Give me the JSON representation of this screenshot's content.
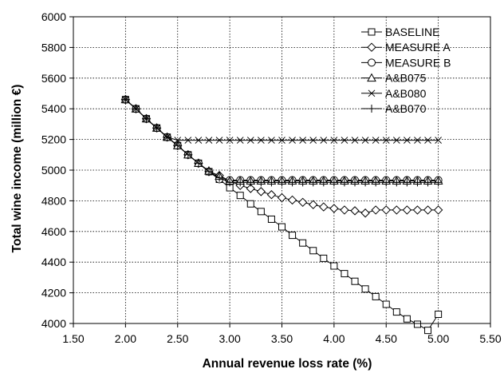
{
  "chart_data": {
    "type": "line",
    "title": "",
    "xlabel": "Annual revenue loss rate (%)",
    "ylabel": "Total wine income (million €)",
    "xlim": [
      1.5,
      5.5
    ],
    "ylim": [
      4000,
      6000
    ],
    "xticks": [
      "1.50",
      "2.00",
      "2.50",
      "3.00",
      "3.50",
      "4.00",
      "4.50",
      "5.00",
      "5.50"
    ],
    "yticks": [
      "4000",
      "4200",
      "4400",
      "4600",
      "4800",
      "5000",
      "5200",
      "5400",
      "5600",
      "5800",
      "6000"
    ],
    "grid": true,
    "legend_position": "top-right",
    "x": [
      2.0,
      2.1,
      2.2,
      2.3,
      2.4,
      2.5,
      2.6,
      2.7,
      2.8,
      2.9,
      3.0,
      3.1,
      3.2,
      3.3,
      3.4,
      3.5,
      3.6,
      3.7,
      3.8,
      3.9,
      4.0,
      4.1,
      4.2,
      4.3,
      4.4,
      4.5,
      4.6,
      4.7,
      4.8,
      4.9,
      5.0
    ],
    "series": [
      {
        "name": "BASELINE",
        "marker": "square",
        "values": [
          5460,
          5400,
          5335,
          5275,
          5215,
          5160,
          5100,
          5045,
          4990,
          4940,
          4885,
          4835,
          4780,
          4730,
          4680,
          4630,
          4575,
          4525,
          4475,
          4425,
          4375,
          4325,
          4275,
          4225,
          4175,
          4125,
          4075,
          4030,
          3995,
          3955,
          4060
        ]
      },
      {
        "name": "MEASURE A",
        "marker": "diamond",
        "values": [
          5460,
          5400,
          5335,
          5275,
          5215,
          5160,
          5100,
          5045,
          4990,
          4965,
          4930,
          4900,
          4880,
          4860,
          4840,
          4820,
          4805,
          4790,
          4775,
          4760,
          4750,
          4740,
          4735,
          4720,
          4740,
          4740,
          4740,
          4740,
          4740,
          4740,
          4740
        ]
      },
      {
        "name": "MEASURE B",
        "marker": "circle",
        "values": [
          5460,
          5400,
          5335,
          5275,
          5215,
          5160,
          5100,
          5045,
          4990,
          4940,
          4935,
          4935,
          4935,
          4935,
          4935,
          4935,
          4935,
          4935,
          4935,
          4935,
          4935,
          4935,
          4935,
          4935,
          4935,
          4935,
          4935,
          4935,
          4935,
          4935,
          4935
        ]
      },
      {
        "name": "A&B075",
        "marker": "triangle",
        "values": [
          5460,
          5400,
          5335,
          5275,
          5215,
          5160,
          5100,
          5045,
          4995,
          4960,
          4930,
          4930,
          4930,
          4930,
          4930,
          4930,
          4930,
          4930,
          4930,
          4930,
          4930,
          4930,
          4930,
          4930,
          4930,
          4930,
          4930,
          4930,
          4930,
          4930,
          4930
        ]
      },
      {
        "name": "A&B080",
        "marker": "x",
        "values": [
          5460,
          5400,
          5335,
          5275,
          5215,
          5195,
          5195,
          5195,
          5195,
          5195,
          5195,
          5195,
          5195,
          5195,
          5195,
          5195,
          5195,
          5195,
          5195,
          5195,
          5195,
          5195,
          5195,
          5195,
          5195,
          5195,
          5195,
          5195,
          5195,
          5195,
          5195
        ]
      },
      {
        "name": "A&B070",
        "marker": "plus",
        "values": [
          5460,
          5400,
          5335,
          5275,
          5215,
          5160,
          5100,
          5045,
          4990,
          4950,
          4920,
          4920,
          4920,
          4920,
          4920,
          4920,
          4920,
          4920,
          4920,
          4920,
          4920,
          4920,
          4920,
          4920,
          4920,
          4920,
          4920,
          4920,
          4920,
          4920,
          4920
        ]
      }
    ]
  }
}
